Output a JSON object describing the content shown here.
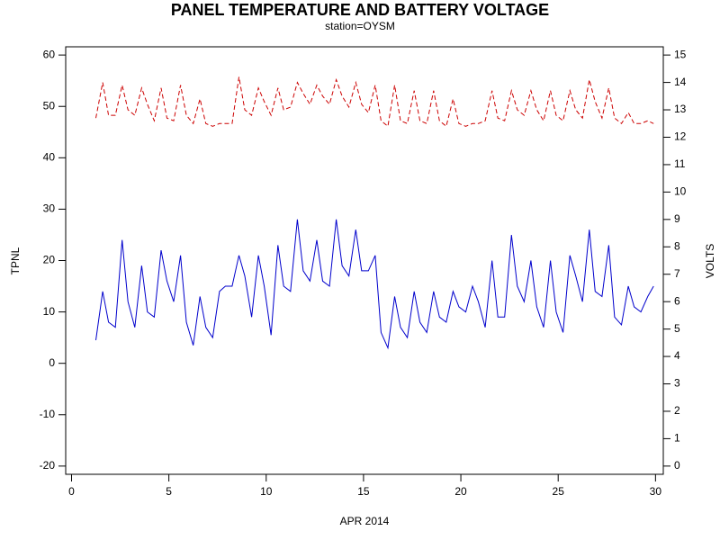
{
  "chart_data": {
    "type": "line",
    "title": "PANEL TEMPERATURE AND BATTERY VOLTAGE",
    "subtitle": "station=OYSM",
    "x_label": "APR 2014",
    "y_label": "TPNL",
    "y2_label": "VOLTS",
    "xlim": [
      -0.3,
      30.4
    ],
    "xticks": [
      0,
      5,
      10,
      15,
      20,
      25,
      30
    ],
    "ylim": [
      -21.6,
      61.6
    ],
    "yticks": [
      -20,
      -10,
      0,
      10,
      20,
      30,
      40,
      50,
      60
    ],
    "y2lim": [
      -0.3,
      15.3
    ],
    "y2ticks": [
      0,
      1,
      2,
      3,
      4,
      5,
      6,
      7,
      8,
      9,
      10,
      11,
      12,
      13,
      14,
      15
    ],
    "x": [
      1.25,
      1.6,
      1.9,
      2.25,
      2.6,
      2.9,
      3.25,
      3.6,
      3.9,
      4.25,
      4.6,
      4.9,
      5.25,
      5.6,
      5.9,
      6.25,
      6.6,
      6.9,
      7.25,
      7.6,
      7.9,
      8.25,
      8.6,
      8.9,
      9.25,
      9.6,
      9.9,
      10.25,
      10.6,
      10.9,
      11.25,
      11.6,
      11.9,
      12.25,
      12.6,
      12.9,
      13.25,
      13.6,
      13.9,
      14.25,
      14.6,
      14.9,
      15.25,
      15.6,
      15.9,
      16.25,
      16.6,
      16.9,
      17.25,
      17.6,
      17.9,
      18.25,
      18.6,
      18.9,
      19.25,
      19.6,
      19.9,
      20.25,
      20.6,
      20.9,
      21.25,
      21.6,
      21.9,
      22.25,
      22.6,
      22.9,
      23.25,
      23.6,
      23.9,
      24.25,
      24.6,
      24.9,
      25.25,
      25.6,
      25.9,
      26.25,
      26.6,
      26.9,
      27.25,
      27.6,
      27.9,
      28.25,
      28.6,
      28.9,
      29.25,
      29.6,
      29.9
    ],
    "series": [
      {
        "color": "#0000cc",
        "style": "solid",
        "axis": "y",
        "values": [
          4.5,
          14,
          8,
          7,
          24,
          12,
          7,
          19,
          10,
          9,
          22,
          16,
          12,
          21,
          8,
          3.5,
          13,
          7,
          5,
          14,
          15,
          15,
          21,
          17,
          9,
          21,
          15,
          5.5,
          23,
          15,
          14,
          28,
          18,
          16,
          24,
          16,
          15,
          28,
          19,
          17,
          26,
          18,
          18,
          21,
          6,
          3,
          13,
          7,
          5,
          14,
          8,
          6,
          14,
          9,
          8,
          14,
          11,
          10,
          15,
          12,
          7,
          20,
          9,
          9,
          25,
          15,
          12,
          20,
          11,
          7,
          20,
          10,
          6,
          21,
          17,
          12,
          26,
          14,
          13,
          23,
          9,
          7.5,
          15,
          11,
          10,
          13,
          15
        ]
      },
      {
        "color": "#cc0000",
        "style": "dashed",
        "axis": "y2",
        "values": [
          12.7,
          14.0,
          12.8,
          12.8,
          13.9,
          13.0,
          12.8,
          13.8,
          13.2,
          12.6,
          13.8,
          12.7,
          12.6,
          13.9,
          12.8,
          12.5,
          13.4,
          12.5,
          12.4,
          12.5,
          12.5,
          12.5,
          14.2,
          13.0,
          12.8,
          13.8,
          13.3,
          12.8,
          13.8,
          13.0,
          13.1,
          14.0,
          13.6,
          13.2,
          13.9,
          13.5,
          13.2,
          14.1,
          13.5,
          13.1,
          14.0,
          13.2,
          12.9,
          13.9,
          12.6,
          12.4,
          13.9,
          12.6,
          12.5,
          13.7,
          12.6,
          12.5,
          13.7,
          12.6,
          12.4,
          13.4,
          12.5,
          12.4,
          12.5,
          12.5,
          12.6,
          13.7,
          12.7,
          12.6,
          13.7,
          13.0,
          12.8,
          13.7,
          13.0,
          12.6,
          13.7,
          12.8,
          12.6,
          13.7,
          13.0,
          12.7,
          14.1,
          13.3,
          12.7,
          13.8,
          12.7,
          12.5,
          12.9,
          12.5,
          12.5,
          12.6,
          12.5
        ]
      }
    ]
  }
}
